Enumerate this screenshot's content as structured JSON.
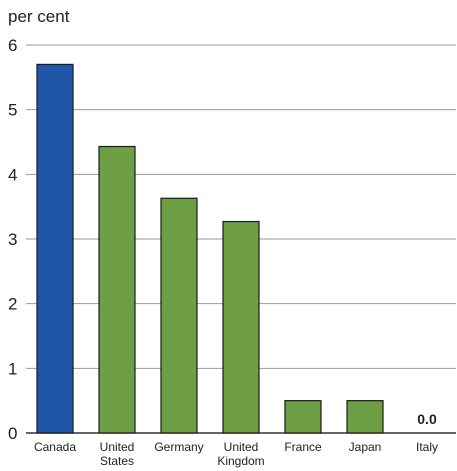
{
  "chart_data": {
    "type": "bar",
    "unit_label": "per cent",
    "categories": [
      "Canada",
      "United States",
      "Germany",
      "United Kingdom",
      "France",
      "Japan",
      "Italy"
    ],
    "category_lines": [
      [
        "Canada"
      ],
      [
        "United",
        "States"
      ],
      [
        "Germany"
      ],
      [
        "United",
        "Kingdom"
      ],
      [
        "France"
      ],
      [
        "Japan"
      ],
      [
        "Italy"
      ]
    ],
    "values": [
      5.7,
      4.43,
      3.63,
      3.27,
      0.5,
      0.5,
      0.0
    ],
    "colors": [
      "#1f56a8",
      "#6e9f45",
      "#6e9f45",
      "#6e9f45",
      "#6e9f45",
      "#6e9f45",
      "#6e9f45"
    ],
    "data_labels": [
      {
        "category": "Italy",
        "text": "0.0"
      }
    ],
    "ylim": [
      0,
      6
    ],
    "yticks": [
      0,
      1,
      2,
      3,
      4,
      5,
      6
    ],
    "ytick_labels": [
      "0",
      "1",
      "2",
      "3",
      "4",
      "5",
      "6"
    ],
    "grid": true,
    "xlabel": "",
    "ylabel": ""
  }
}
